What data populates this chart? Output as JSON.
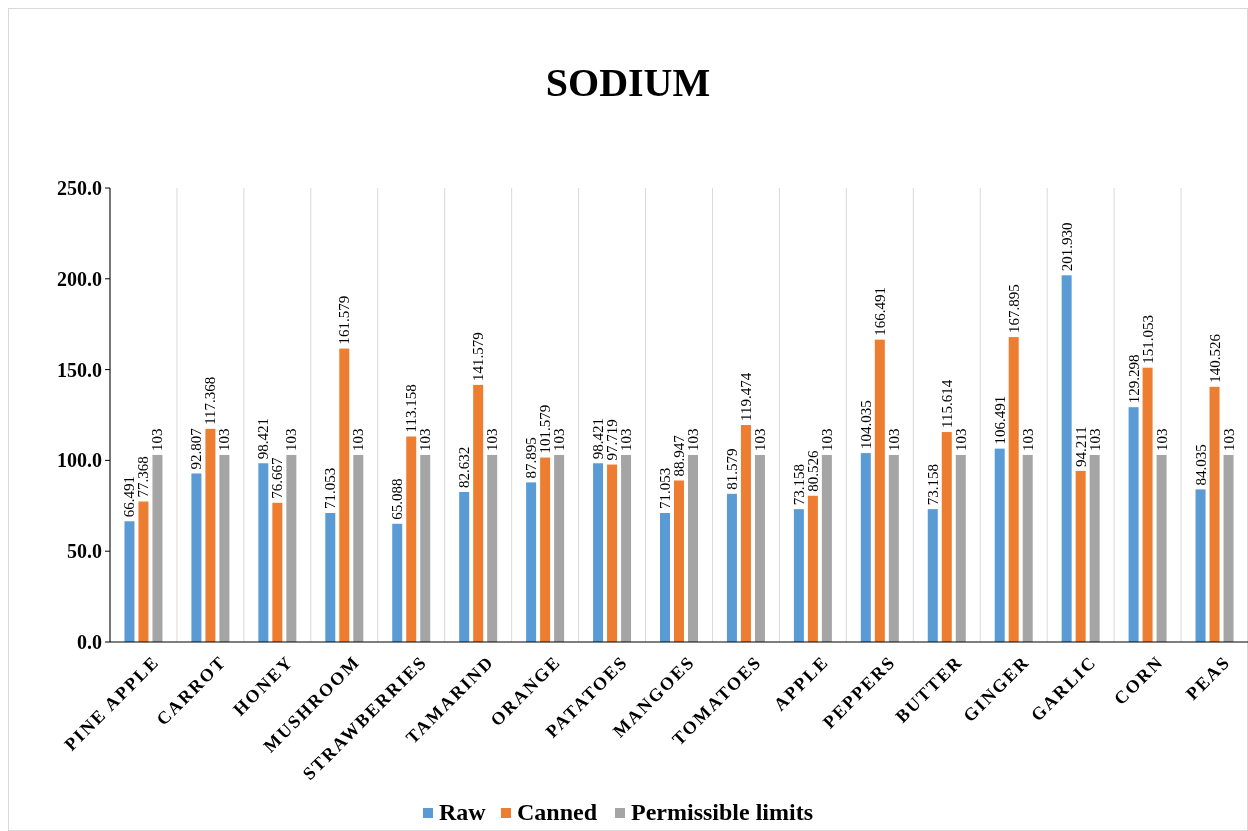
{
  "chart_data": {
    "type": "bar",
    "title": "SODIUM",
    "categories": [
      "PINE APPLE",
      "CARROT",
      "HONEY",
      "MUSHROOM",
      "STRAWBERRIES",
      "TAMARIND",
      "ORANGE",
      "PATATOES",
      "MANGOES",
      "TOMATOES",
      "APPLE",
      "PEPPERS",
      "BUTTER",
      "GINGER",
      "GARLIC",
      "CORN",
      "PEAS"
    ],
    "series": [
      {
        "name": "Raw",
        "color": "#5b9bd5",
        "values": [
          66.491,
          92.807,
          98.421,
          71.053,
          65.088,
          82.632,
          87.895,
          98.421,
          71.053,
          81.579,
          73.158,
          104.035,
          73.158,
          106.491,
          201.93,
          129.298,
          84.035
        ],
        "value_labels": [
          "66.491",
          "92.807",
          "98.421",
          "71.053",
          "65.088",
          "82.632",
          "87.895",
          "98.421",
          "71.053",
          "81.579",
          "73.158",
          "104.035",
          "73.158",
          "106.491",
          "201.930",
          "129.298",
          "84.035"
        ]
      },
      {
        "name": "Canned",
        "color": "#ed7d31",
        "values": [
          77.368,
          117.368,
          76.667,
          161.579,
          113.158,
          141.579,
          101.579,
          97.719,
          88.947,
          119.474,
          80.526,
          166.491,
          115.614,
          167.895,
          94.211,
          151.053,
          140.526
        ],
        "value_labels": [
          "77.368",
          "117.368",
          "76.667",
          "161.579",
          "113.158",
          "141.579",
          "101.579",
          "97.719",
          "88.947",
          "119.474",
          "80.526",
          "166.491",
          "115.614",
          "167.895",
          "94.211",
          "151.053",
          "140.526"
        ]
      },
      {
        "name": "Permissible limits",
        "color": "#a5a5a5",
        "values": [
          103,
          103,
          103,
          103,
          103,
          103,
          103,
          103,
          103,
          103,
          103,
          103,
          103,
          103,
          103,
          103,
          103
        ],
        "value_labels": [
          "103",
          "103",
          "103",
          "103",
          "103",
          "103",
          "103",
          "103",
          "103",
          "103",
          "103",
          "103",
          "103",
          "103",
          "103",
          "103",
          "103"
        ]
      }
    ],
    "ylim": [
      0,
      250
    ],
    "yticks": [
      {
        "value": 0,
        "label": "0.0"
      },
      {
        "value": 50,
        "label": "50.0"
      },
      {
        "value": 100,
        "label": "100.0"
      },
      {
        "value": 150,
        "label": "150.0"
      },
      {
        "value": 200,
        "label": "200.0"
      },
      {
        "value": 250,
        "label": "250.0"
      }
    ],
    "grid": "x",
    "legend": "bottom"
  }
}
